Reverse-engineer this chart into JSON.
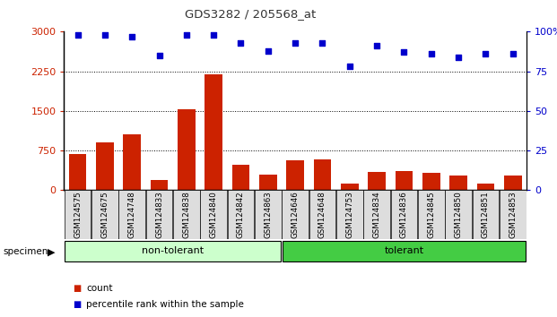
{
  "title": "GDS3282 / 205568_at",
  "categories": [
    "GSM124575",
    "GSM124675",
    "GSM124748",
    "GSM124833",
    "GSM124838",
    "GSM124840",
    "GSM124842",
    "GSM124863",
    "GSM124646",
    "GSM124648",
    "GSM124753",
    "GSM124834",
    "GSM124836",
    "GSM124845",
    "GSM124850",
    "GSM124851",
    "GSM124853"
  ],
  "bar_values": [
    680,
    900,
    1050,
    200,
    1530,
    2200,
    480,
    290,
    570,
    580,
    120,
    350,
    360,
    330,
    270,
    130,
    280
  ],
  "percentile_values": [
    98,
    98,
    97,
    85,
    98,
    98,
    93,
    88,
    93,
    93,
    78,
    91,
    87,
    86,
    84,
    86,
    86
  ],
  "group1_label": "non-tolerant",
  "group2_label": "tolerant",
  "group1_count": 8,
  "group2_count": 9,
  "bar_color": "#cc2200",
  "scatter_color": "#0000cc",
  "group1_bg": "#ccffcc",
  "group2_bg": "#44cc44",
  "tick_bg": "#dddddd",
  "ylim_left": [
    0,
    3000
  ],
  "ylim_right": [
    0,
    100
  ],
  "yticks_left": [
    0,
    750,
    1500,
    2250,
    3000
  ],
  "yticks_right": [
    0,
    25,
    50,
    75,
    100
  ],
  "legend_count_label": "count",
  "legend_pct_label": "percentile rank within the sample",
  "specimen_label": "specimen",
  "title_color": "#333333",
  "left_axis_color": "#cc2200",
  "right_axis_color": "#0000cc"
}
